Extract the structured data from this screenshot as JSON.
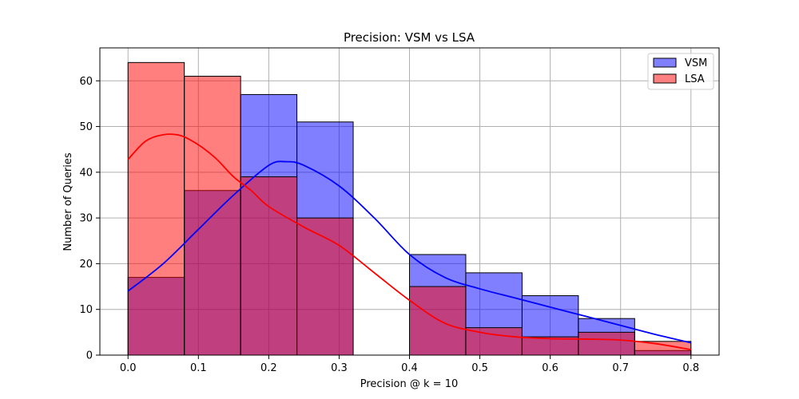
{
  "chart_data": {
    "type": "bar",
    "title": "Precision: VSM vs LSA",
    "xlabel": "Precision @ k = 10",
    "ylabel": "Number of Queries",
    "xlim": [
      -0.04,
      0.84
    ],
    "ylim": [
      0,
      67.2
    ],
    "x_ticks": [
      0.0,
      0.1,
      0.2,
      0.3,
      0.4,
      0.5,
      0.6,
      0.7,
      0.8
    ],
    "x_tick_labels": [
      "0.0",
      "0.1",
      "0.2",
      "0.3",
      "0.4",
      "0.5",
      "0.6",
      "0.7",
      "0.8"
    ],
    "y_ticks": [
      0,
      10,
      20,
      30,
      40,
      50,
      60
    ],
    "y_tick_labels": [
      "0",
      "10",
      "20",
      "30",
      "40",
      "50",
      "60"
    ],
    "grid": true,
    "legend_position": "top-right",
    "bin_edges": [
      0.0,
      0.08,
      0.16,
      0.24,
      0.32,
      0.4,
      0.48,
      0.56,
      0.64,
      0.72,
      0.8
    ],
    "series": [
      {
        "name": "VSM",
        "color": "#0000ff",
        "bar_fill": "#8080ff",
        "counts": [
          17,
          36,
          57,
          51,
          0,
          22,
          18,
          13,
          8,
          1
        ],
        "kde": [
          [
            0.0,
            14
          ],
          [
            0.05,
            20
          ],
          [
            0.1,
            27.5
          ],
          [
            0.15,
            35
          ],
          [
            0.2,
            41.5
          ],
          [
            0.225,
            42.3
          ],
          [
            0.25,
            41.5
          ],
          [
            0.3,
            37
          ],
          [
            0.35,
            30
          ],
          [
            0.4,
            22
          ],
          [
            0.45,
            17
          ],
          [
            0.5,
            14.5
          ],
          [
            0.55,
            12.5
          ],
          [
            0.6,
            10.5
          ],
          [
            0.65,
            8.5
          ],
          [
            0.7,
            6.5
          ],
          [
            0.75,
            4.5
          ],
          [
            0.8,
            2.7
          ]
        ]
      },
      {
        "name": "LSA",
        "color": "#ff0000",
        "bar_fill": "#ff8080",
        "counts": [
          64,
          61,
          39,
          30,
          0,
          15,
          6,
          4,
          5,
          3
        ],
        "kde": [
          [
            0.0,
            42.8
          ],
          [
            0.025,
            46.8
          ],
          [
            0.05,
            48.2
          ],
          [
            0.075,
            48
          ],
          [
            0.1,
            46
          ],
          [
            0.125,
            43
          ],
          [
            0.15,
            39
          ],
          [
            0.175,
            36
          ],
          [
            0.2,
            32.5
          ],
          [
            0.25,
            28
          ],
          [
            0.3,
            24
          ],
          [
            0.35,
            18
          ],
          [
            0.4,
            12
          ],
          [
            0.45,
            7
          ],
          [
            0.5,
            5
          ],
          [
            0.55,
            4
          ],
          [
            0.6,
            3.6
          ],
          [
            0.65,
            3.5
          ],
          [
            0.7,
            3.3
          ],
          [
            0.75,
            2.5
          ],
          [
            0.8,
            1.2
          ]
        ]
      }
    ]
  }
}
